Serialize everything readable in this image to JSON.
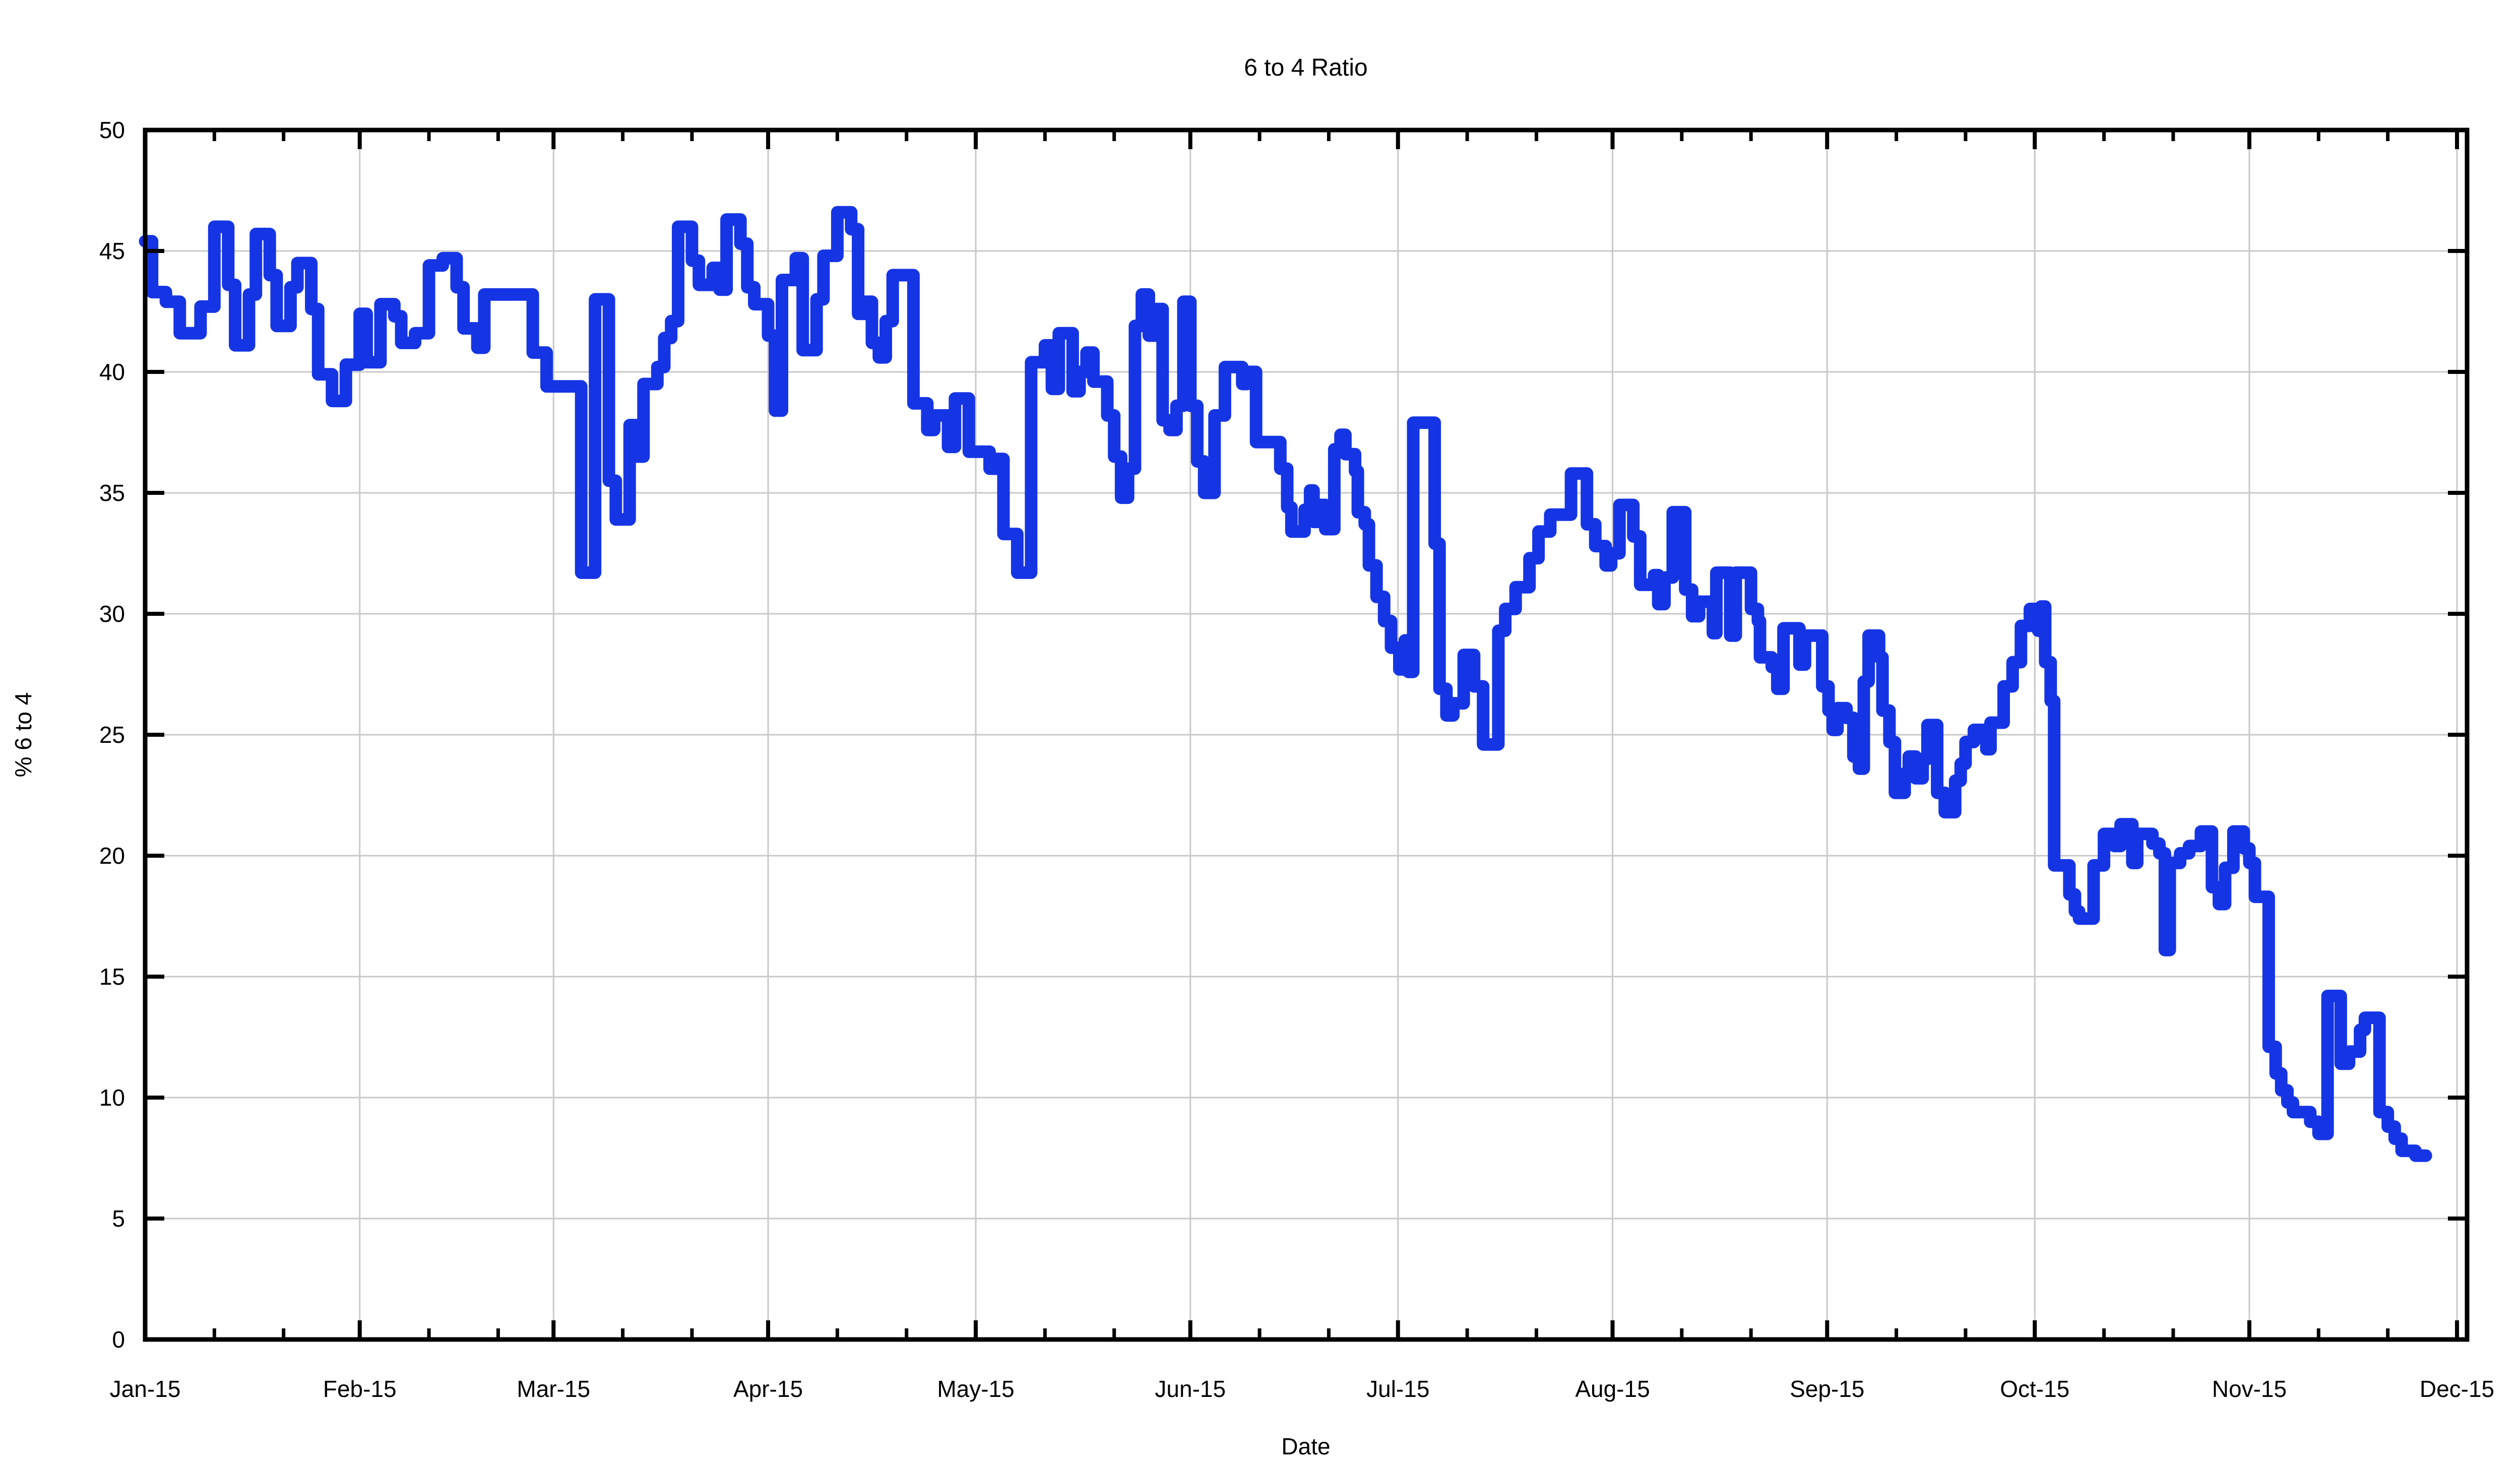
{
  "page": {
    "background": "#ffffff"
  },
  "chart_data": {
    "type": "line",
    "interpolation": "step-after",
    "title": "6 to 4 Ratio",
    "xlabel": "Date",
    "ylabel": "% 6 to 4",
    "legend": "none",
    "grid": true,
    "line_color": "#1535e5",
    "grid_color": "#c8c8c8",
    "axis_color": "#000000",
    "ylim": [
      0,
      50
    ],
    "y_ticks": [
      0,
      5,
      10,
      15,
      20,
      25,
      30,
      35,
      40,
      45,
      50
    ],
    "x_domain_days": [
      0,
      335.5
    ],
    "x_ticks": [
      {
        "day": 0,
        "label": "Jan-15"
      },
      {
        "day": 31,
        "label": "Feb-15"
      },
      {
        "day": 59,
        "label": "Mar-15"
      },
      {
        "day": 90,
        "label": "Apr-15"
      },
      {
        "day": 120,
        "label": "May-15"
      },
      {
        "day": 151,
        "label": "Jun-15"
      },
      {
        "day": 181,
        "label": "Jul-15"
      },
      {
        "day": 212,
        "label": "Aug-15"
      },
      {
        "day": 243,
        "label": "Sep-15"
      },
      {
        "day": 273,
        "label": "Oct-15"
      },
      {
        "day": 304,
        "label": "Nov-15"
      },
      {
        "day": 334,
        "label": "Dec-15"
      }
    ],
    "x_minor_tick_offsets_days": [
      10,
      20
    ],
    "series": [
      {
        "name": "% 6 to 4",
        "points": [
          [
            0,
            45.4
          ],
          [
            1,
            43.3
          ],
          [
            3,
            42.9
          ],
          [
            5,
            41.6
          ],
          [
            8,
            42.7
          ],
          [
            10,
            46.0
          ],
          [
            12,
            43.6
          ],
          [
            13,
            41.1
          ],
          [
            15,
            43.2
          ],
          [
            16,
            45.7
          ],
          [
            18,
            44.0
          ],
          [
            19,
            41.9
          ],
          [
            21,
            43.5
          ],
          [
            22,
            44.5
          ],
          [
            24,
            42.6
          ],
          [
            25,
            39.9
          ],
          [
            27,
            38.8
          ],
          [
            29,
            40.3
          ],
          [
            31,
            42.4
          ],
          [
            32,
            40.4
          ],
          [
            34,
            42.8
          ],
          [
            36,
            42.3
          ],
          [
            37,
            41.2
          ],
          [
            39,
            41.6
          ],
          [
            41,
            44.4
          ],
          [
            43,
            44.7
          ],
          [
            45,
            43.5
          ],
          [
            46,
            41.8
          ],
          [
            48,
            41.0
          ],
          [
            49,
            43.2
          ],
          [
            56,
            40.8
          ],
          [
            58,
            39.4
          ],
          [
            63,
            31.7
          ],
          [
            65,
            43.0
          ],
          [
            67,
            35.5
          ],
          [
            68,
            33.9
          ],
          [
            70,
            37.8
          ],
          [
            71,
            36.5
          ],
          [
            72,
            39.5
          ],
          [
            74,
            40.2
          ],
          [
            75,
            41.4
          ],
          [
            76,
            42.1
          ],
          [
            77,
            46.0
          ],
          [
            79,
            44.6
          ],
          [
            80,
            43.6
          ],
          [
            82,
            44.3
          ],
          [
            83,
            43.4
          ],
          [
            84,
            46.3
          ],
          [
            86,
            45.3
          ],
          [
            87,
            43.5
          ],
          [
            88,
            42.8
          ],
          [
            90,
            41.5
          ],
          [
            91,
            38.4
          ],
          [
            92,
            43.8
          ],
          [
            94,
            44.7
          ],
          [
            95,
            40.9
          ],
          [
            97,
            43.0
          ],
          [
            98,
            44.8
          ],
          [
            100,
            46.6
          ],
          [
            102,
            45.9
          ],
          [
            103,
            42.4
          ],
          [
            104,
            42.9
          ],
          [
            105,
            41.2
          ],
          [
            106,
            40.6
          ],
          [
            107,
            42.1
          ],
          [
            108,
            44.0
          ],
          [
            111,
            38.7
          ],
          [
            113,
            37.6
          ],
          [
            114,
            38.2
          ],
          [
            116,
            36.9
          ],
          [
            117,
            38.9
          ],
          [
            119,
            36.7
          ],
          [
            122,
            36.0
          ],
          [
            123,
            36.4
          ],
          [
            124,
            33.3
          ],
          [
            126,
            31.7
          ],
          [
            128,
            40.4
          ],
          [
            130,
            41.1
          ],
          [
            131,
            39.3
          ],
          [
            132,
            41.6
          ],
          [
            134,
            39.2
          ],
          [
            135,
            40.0
          ],
          [
            136,
            40.8
          ],
          [
            137,
            39.6
          ],
          [
            139,
            38.2
          ],
          [
            140,
            36.5
          ],
          [
            141,
            34.8
          ],
          [
            142,
            36.0
          ],
          [
            143,
            41.9
          ],
          [
            144,
            43.2
          ],
          [
            145,
            41.5
          ],
          [
            146,
            42.6
          ],
          [
            147,
            38.0
          ],
          [
            148,
            37.6
          ],
          [
            149,
            38.6
          ],
          [
            150,
            42.9
          ],
          [
            151,
            38.6
          ],
          [
            152,
            36.3
          ],
          [
            153,
            35.0
          ],
          [
            154.5,
            38.2
          ],
          [
            156,
            40.2
          ],
          [
            158.5,
            39.5
          ],
          [
            159.2,
            40.0
          ],
          [
            160.5,
            37.1
          ],
          [
            164,
            36.0
          ],
          [
            165,
            34.4
          ],
          [
            165.6,
            33.4
          ],
          [
            167.5,
            34.3
          ],
          [
            168.3,
            35.1
          ],
          [
            168.8,
            33.8
          ],
          [
            169.4,
            34.5
          ],
          [
            170.5,
            33.5
          ],
          [
            171.8,
            36.8
          ],
          [
            172.7,
            37.4
          ],
          [
            173.4,
            36.6
          ],
          [
            174.8,
            35.9
          ],
          [
            175.2,
            34.2
          ],
          [
            176.2,
            33.7
          ],
          [
            176.8,
            32.0
          ],
          [
            177.9,
            30.7
          ],
          [
            179,
            29.7
          ],
          [
            180,
            28.6
          ],
          [
            181.2,
            27.7
          ],
          [
            182,
            28.9
          ],
          [
            182.5,
            27.6
          ],
          [
            183.2,
            37.9
          ],
          [
            186.3,
            32.9
          ],
          [
            187,
            26.9
          ],
          [
            188,
            25.8
          ],
          [
            189,
            26.3
          ],
          [
            190.5,
            28.3
          ],
          [
            192,
            27.0
          ],
          [
            193.3,
            24.6
          ],
          [
            195.5,
            29.3
          ],
          [
            196.5,
            30.2
          ],
          [
            198,
            31.1
          ],
          [
            200,
            32.3
          ],
          [
            201.3,
            33.4
          ],
          [
            203,
            34.1
          ],
          [
            206,
            35.8
          ],
          [
            208.3,
            33.7
          ],
          [
            209.5,
            32.8
          ],
          [
            211,
            32.0
          ],
          [
            211.8,
            32.5
          ],
          [
            213,
            34.5
          ],
          [
            215,
            33.2
          ],
          [
            216,
            31.2
          ],
          [
            218,
            31.6
          ],
          [
            218.6,
            30.4
          ],
          [
            219.5,
            31.5
          ],
          [
            220.7,
            34.2
          ],
          [
            222.5,
            31.0
          ],
          [
            223.5,
            29.9
          ],
          [
            224.5,
            30.5
          ],
          [
            226.5,
            29.2
          ],
          [
            227,
            31.7
          ],
          [
            229,
            29.1
          ],
          [
            229.8,
            31.7
          ],
          [
            232,
            30.2
          ],
          [
            233,
            29.7
          ],
          [
            233.3,
            28.2
          ],
          [
            235,
            27.8
          ],
          [
            235.8,
            26.9
          ],
          [
            236.7,
            29.4
          ],
          [
            239,
            27.9
          ],
          [
            239.8,
            29.1
          ],
          [
            242.3,
            27.0
          ],
          [
            243.2,
            26.0
          ],
          [
            243.8,
            25.2
          ],
          [
            244.5,
            26.1
          ],
          [
            245.8,
            25.7
          ],
          [
            246.8,
            24.1
          ],
          [
            247.6,
            23.6
          ],
          [
            248.3,
            27.2
          ],
          [
            249,
            29.1
          ],
          [
            250.5,
            28.2
          ],
          [
            251,
            26.0
          ],
          [
            252,
            24.7
          ],
          [
            252.8,
            22.6
          ],
          [
            254.2,
            23.4
          ],
          [
            254.8,
            24.1
          ],
          [
            255.8,
            23.2
          ],
          [
            256.8,
            24.0
          ],
          [
            257.5,
            25.4
          ],
          [
            258.9,
            22.6
          ],
          [
            260,
            21.8
          ],
          [
            261.5,
            23.1
          ],
          [
            262.3,
            23.8
          ],
          [
            263,
            24.7
          ],
          [
            264.2,
            25.2
          ],
          [
            266,
            24.4
          ],
          [
            266.6,
            25.5
          ],
          [
            268.5,
            27.0
          ],
          [
            269.8,
            28.0
          ],
          [
            271,
            29.5
          ],
          [
            272.3,
            30.2
          ],
          [
            273.5,
            29.3
          ],
          [
            273.9,
            30.3
          ],
          [
            274.5,
            28.0
          ],
          [
            275.3,
            26.4
          ],
          [
            275.8,
            19.6
          ],
          [
            278,
            18.4
          ],
          [
            278.8,
            17.7
          ],
          [
            279.4,
            17.4
          ],
          [
            281.5,
            19.6
          ],
          [
            283,
            20.9
          ],
          [
            284.5,
            20.4
          ],
          [
            285.4,
            21.3
          ],
          [
            287.1,
            19.7
          ],
          [
            287.8,
            20.9
          ],
          [
            290,
            20.5
          ],
          [
            291,
            20.1
          ],
          [
            291.8,
            16.1
          ],
          [
            292.5,
            19.7
          ],
          [
            294,
            20.1
          ],
          [
            295.3,
            20.4
          ],
          [
            297,
            21.0
          ],
          [
            298.6,
            18.7
          ],
          [
            299.6,
            18.0
          ],
          [
            300.5,
            19.5
          ],
          [
            301.7,
            21.0
          ],
          [
            303.2,
            20.3
          ],
          [
            304,
            19.7
          ],
          [
            304.8,
            18.3
          ],
          [
            306.8,
            12.1
          ],
          [
            307.8,
            11.0
          ],
          [
            308.6,
            10.3
          ],
          [
            309.5,
            9.8
          ],
          [
            310.3,
            9.4
          ],
          [
            312.8,
            9.0
          ],
          [
            314,
            8.5
          ],
          [
            315.3,
            14.2
          ],
          [
            317.2,
            11.4
          ],
          [
            318.4,
            11.9
          ],
          [
            320,
            12.8
          ],
          [
            320.7,
            13.3
          ],
          [
            322.8,
            9.4
          ],
          [
            324,
            8.8
          ],
          [
            325,
            8.3
          ],
          [
            326,
            7.8
          ],
          [
            328,
            7.6
          ],
          [
            329.5,
            7.6
          ]
        ]
      }
    ]
  }
}
